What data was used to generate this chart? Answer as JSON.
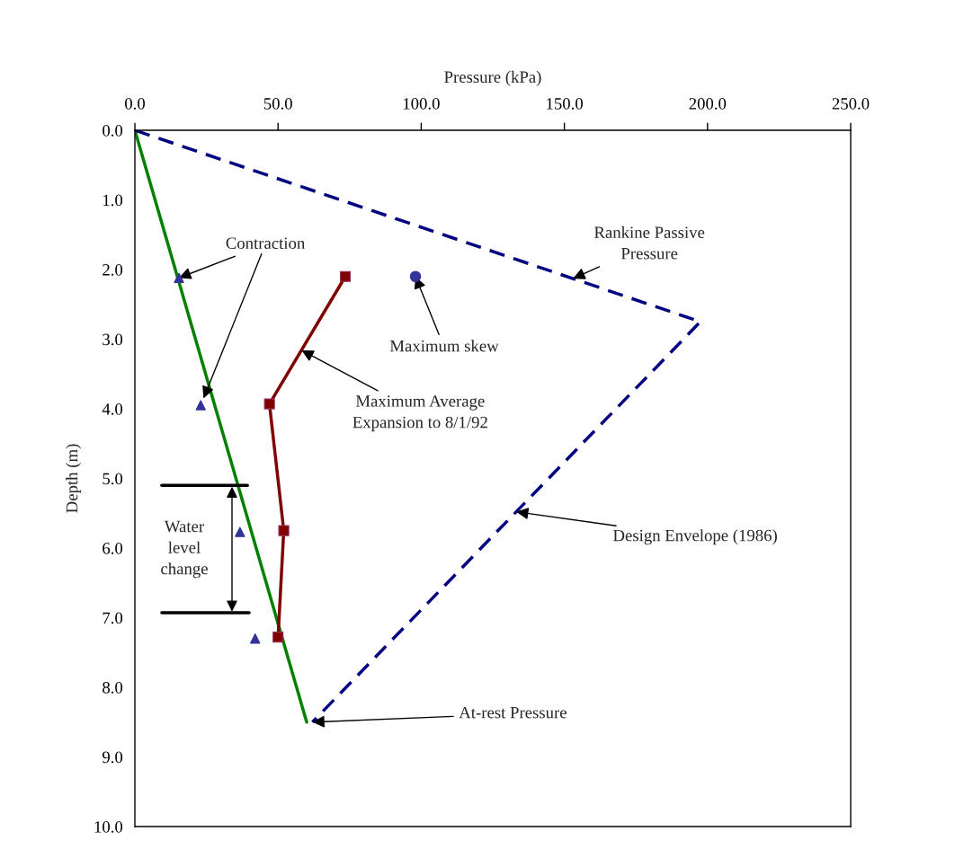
{
  "chart_data": {
    "type": "line",
    "xlabel": "Pressure (kPa)",
    "ylabel": "Depth (m)",
    "xlim": [
      0,
      250
    ],
    "ylim": [
      10,
      0
    ],
    "xticks": [
      {
        "value": 0,
        "label": "0.0"
      },
      {
        "value": 50,
        "label": "50.0"
      },
      {
        "value": 100,
        "label": "100.0"
      },
      {
        "value": 150,
        "label": "150.0"
      },
      {
        "value": 200,
        "label": "200.0"
      },
      {
        "value": 250,
        "label": "250.0"
      }
    ],
    "yticks": [
      {
        "value": 0,
        "label": "0.0"
      },
      {
        "value": 1,
        "label": "1.0"
      },
      {
        "value": 2,
        "label": "2.0"
      },
      {
        "value": 3,
        "label": "3.0"
      },
      {
        "value": 4,
        "label": "4.0"
      },
      {
        "value": 5,
        "label": "5.0"
      },
      {
        "value": 6,
        "label": "6.0"
      },
      {
        "value": 7,
        "label": "7.0"
      },
      {
        "value": 8,
        "label": "8.0"
      },
      {
        "value": 9,
        "label": "9.0"
      },
      {
        "value": 10,
        "label": "10.0"
      }
    ],
    "grid": false,
    "series": [
      {
        "color": "#008000",
        "x": [
          0,
          60
        ],
        "values": [
          0,
          8.5
        ],
        "line_style": "solid",
        "marker": "none"
      },
      {
        "color": "#000080",
        "x": [
          0,
          197.5,
          62
        ],
        "values": [
          0,
          2.75,
          8.5
        ],
        "line_style": "dashed",
        "marker": "none"
      },
      {
        "color": "#800000",
        "x": [
          73.5,
          47,
          52,
          50
        ],
        "values": [
          2.1,
          3.93,
          5.75,
          7.28
        ],
        "line_style": "solid",
        "marker": "square"
      },
      {
        "type": "scatter",
        "color": "#333399",
        "x": [
          15.4,
          23,
          36.7,
          42
        ],
        "values": [
          2.12,
          3.95,
          5.77,
          7.3
        ],
        "marker": "triangle"
      },
      {
        "type": "scatter",
        "color": "#333399",
        "x": [
          98
        ],
        "values": [
          2.1
        ],
        "marker": "circle"
      },
      {
        "color": "#000000",
        "x": [
          9.4,
          39.3
        ],
        "values": [
          5.1,
          5.1
        ],
        "line_style": "solid",
        "marker": "none"
      },
      {
        "color": "#000000",
        "x": [
          9.4,
          39.9
        ],
        "values": [
          6.93,
          6.93
        ],
        "line_style": "solid",
        "marker": "none"
      }
    ],
    "annotations": [
      {
        "text": "Contraction",
        "x": 15.4,
        "y": 2.12
      },
      {
        "text": "Rankine Passive\nPressure",
        "x": 153,
        "y": 2.13
      },
      {
        "text": "Maximum skew",
        "x": 98,
        "y": 2.1
      },
      {
        "text": "Maximum Average\nExpansion to 8/1/92",
        "x": 58.2,
        "y": 3.16
      },
      {
        "text": "Design Envelope (1986)",
        "x": 133.2,
        "y": 5.48
      },
      {
        "text": "At-rest Pressure",
        "x": 62,
        "y": 8.5
      },
      "Water\nlevel\nchange"
    ]
  }
}
